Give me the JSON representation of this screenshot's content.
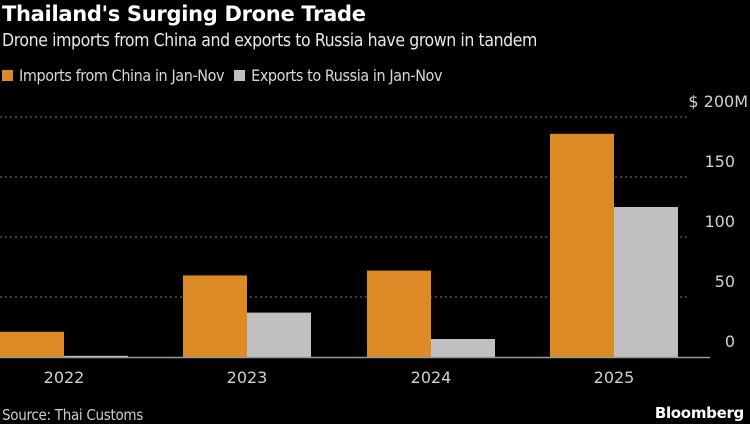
{
  "chart_data": {
    "type": "bar",
    "title": "Thailand's Surging Drone Trade",
    "subtitle": "Drone imports from China and exports to Russia have grown in tandem",
    "categories": [
      "2022",
      "2023",
      "2024",
      "2025"
    ],
    "series": [
      {
        "name": "Imports from China in Jan-Nov",
        "color": "#dc8a26",
        "values": [
          21,
          68,
          72,
          186
        ]
      },
      {
        "name": "Exports to Russia in Jan-Nov",
        "color": "#c0c0c0",
        "values": [
          1,
          37,
          15,
          125
        ]
      }
    ],
    "yticks": [
      "0",
      "50",
      "100",
      "150",
      "$ 200M"
    ],
    "ytick_values": [
      0,
      50,
      100,
      150,
      200
    ],
    "ylim": [
      0,
      200
    ],
    "grid": true,
    "legend_position": "top-left",
    "xlabel": "",
    "ylabel": ""
  },
  "footer": {
    "source": "Source: Thai Customs",
    "brand": "Bloomberg"
  }
}
